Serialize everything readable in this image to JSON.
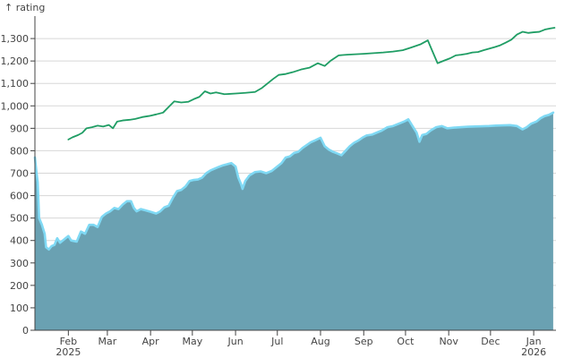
{
  "chart_data": {
    "type": "area",
    "title": "",
    "xlabel": "",
    "ylabel": "↑ rating",
    "grid": true,
    "ylim": [
      0,
      1400
    ],
    "xlim": [
      "2025-01-08",
      "2026-01-17"
    ],
    "y_ticks": [
      0,
      100,
      200,
      300,
      400,
      500,
      600,
      700,
      800,
      900,
      1000,
      1100,
      1200,
      1300
    ],
    "y_tick_labels": [
      "0",
      "100",
      "200",
      "300",
      "400",
      "500",
      "600",
      "700",
      "800",
      "900",
      "1,000",
      "1,100",
      "1,200",
      "1,300"
    ],
    "x_ticks": [
      {
        "date": "2025-02-01",
        "label": "Feb",
        "sublabel": "2025"
      },
      {
        "date": "2025-03-01",
        "label": "Mar",
        "sublabel": ""
      },
      {
        "date": "2025-04-01",
        "label": "Apr",
        "sublabel": ""
      },
      {
        "date": "2025-05-01",
        "label": "May",
        "sublabel": ""
      },
      {
        "date": "2025-06-01",
        "label": "Jun",
        "sublabel": ""
      },
      {
        "date": "2025-07-01",
        "label": "Jul",
        "sublabel": ""
      },
      {
        "date": "2025-08-01",
        "label": "Aug",
        "sublabel": ""
      },
      {
        "date": "2025-09-01",
        "label": "Sep",
        "sublabel": ""
      },
      {
        "date": "2025-10-01",
        "label": "Oct",
        "sublabel": ""
      },
      {
        "date": "2025-11-01",
        "label": "Nov",
        "sublabel": ""
      },
      {
        "date": "2025-12-01",
        "label": "Dec",
        "sublabel": ""
      },
      {
        "date": "2026-01-01",
        "label": "Jan",
        "sublabel": "2026"
      }
    ],
    "series": [
      {
        "kind": "area",
        "fill": "#6aa1b2",
        "stroke": "#7fd9f4",
        "points": [
          [
            "2025-01-08",
            770
          ],
          [
            "2025-01-09",
            710
          ],
          [
            "2025-01-10",
            660
          ],
          [
            "2025-01-11",
            500
          ],
          [
            "2025-01-13",
            470
          ],
          [
            "2025-01-15",
            430
          ],
          [
            "2025-01-16",
            370
          ],
          [
            "2025-01-18",
            360
          ],
          [
            "2025-01-20",
            375
          ],
          [
            "2025-01-22",
            380
          ],
          [
            "2025-01-24",
            410
          ],
          [
            "2025-01-26",
            390
          ],
          [
            "2025-01-28",
            400
          ],
          [
            "2025-02-01",
            420
          ],
          [
            "2025-02-03",
            400
          ],
          [
            "2025-02-07",
            395
          ],
          [
            "2025-02-10",
            440
          ],
          [
            "2025-02-13",
            430
          ],
          [
            "2025-02-16",
            470
          ],
          [
            "2025-02-19",
            470
          ],
          [
            "2025-02-22",
            460
          ],
          [
            "2025-02-25",
            505
          ],
          [
            "2025-02-28",
            520
          ],
          [
            "2025-03-03",
            530
          ],
          [
            "2025-03-06",
            545
          ],
          [
            "2025-03-09",
            540
          ],
          [
            "2025-03-12",
            560
          ],
          [
            "2025-03-15",
            575
          ],
          [
            "2025-03-18",
            575
          ],
          [
            "2025-03-20",
            545
          ],
          [
            "2025-03-22",
            530
          ],
          [
            "2025-03-25",
            540
          ],
          [
            "2025-03-28",
            535
          ],
          [
            "2025-04-01",
            528
          ],
          [
            "2025-04-05",
            520
          ],
          [
            "2025-04-08",
            530
          ],
          [
            "2025-04-11",
            548
          ],
          [
            "2025-04-14",
            555
          ],
          [
            "2025-04-17",
            590
          ],
          [
            "2025-04-20",
            620
          ],
          [
            "2025-04-23",
            625
          ],
          [
            "2025-04-26",
            640
          ],
          [
            "2025-04-29",
            665
          ],
          [
            "2025-05-02",
            670
          ],
          [
            "2025-05-05",
            672
          ],
          [
            "2025-05-08",
            680
          ],
          [
            "2025-05-11",
            700
          ],
          [
            "2025-05-14",
            712
          ],
          [
            "2025-05-17",
            720
          ],
          [
            "2025-05-20",
            728
          ],
          [
            "2025-05-23",
            735
          ],
          [
            "2025-05-26",
            740
          ],
          [
            "2025-05-29",
            745
          ],
          [
            "2025-06-01",
            730
          ],
          [
            "2025-06-03",
            680
          ],
          [
            "2025-06-05",
            650
          ],
          [
            "2025-06-06",
            630
          ],
          [
            "2025-06-08",
            665
          ],
          [
            "2025-06-11",
            690
          ],
          [
            "2025-06-15",
            705
          ],
          [
            "2025-06-19",
            708
          ],
          [
            "2025-06-23",
            700
          ],
          [
            "2025-06-27",
            710
          ],
          [
            "2025-07-01",
            730
          ],
          [
            "2025-07-04",
            745
          ],
          [
            "2025-07-07",
            770
          ],
          [
            "2025-07-10",
            775
          ],
          [
            "2025-07-13",
            790
          ],
          [
            "2025-07-16",
            795
          ],
          [
            "2025-07-19",
            812
          ],
          [
            "2025-07-22",
            825
          ],
          [
            "2025-07-25",
            838
          ],
          [
            "2025-07-28",
            846
          ],
          [
            "2025-08-01",
            858
          ],
          [
            "2025-08-04",
            820
          ],
          [
            "2025-08-07",
            805
          ],
          [
            "2025-08-10",
            795
          ],
          [
            "2025-08-13",
            788
          ],
          [
            "2025-08-16",
            780
          ],
          [
            "2025-08-19",
            800
          ],
          [
            "2025-08-22",
            820
          ],
          [
            "2025-08-25",
            835
          ],
          [
            "2025-08-28",
            845
          ],
          [
            "2025-08-31",
            858
          ],
          [
            "2025-09-03",
            868
          ],
          [
            "2025-09-07",
            872
          ],
          [
            "2025-09-10",
            880
          ],
          [
            "2025-09-14",
            890
          ],
          [
            "2025-09-18",
            905
          ],
          [
            "2025-09-22",
            910
          ],
          [
            "2025-09-26",
            920
          ],
          [
            "2025-09-30",
            930
          ],
          [
            "2025-10-03",
            940
          ],
          [
            "2025-10-06",
            910
          ],
          [
            "2025-10-09",
            880
          ],
          [
            "2025-10-11",
            840
          ],
          [
            "2025-10-13",
            870
          ],
          [
            "2025-10-16",
            875
          ],
          [
            "2025-10-19",
            890
          ],
          [
            "2025-10-23",
            905
          ],
          [
            "2025-10-27",
            910
          ],
          [
            "2025-10-31",
            900
          ],
          [
            "2025-11-05",
            903
          ],
          [
            "2025-11-10",
            905
          ],
          [
            "2025-11-15",
            907
          ],
          [
            "2025-11-20",
            908
          ],
          [
            "2025-11-25",
            909
          ],
          [
            "2025-11-30",
            910
          ],
          [
            "2025-12-05",
            912
          ],
          [
            "2025-12-10",
            913
          ],
          [
            "2025-12-15",
            914
          ],
          [
            "2025-12-20",
            910
          ],
          [
            "2025-12-24",
            895
          ],
          [
            "2025-12-27",
            905
          ],
          [
            "2025-12-30",
            920
          ],
          [
            "2026-01-03",
            930
          ],
          [
            "2026-01-06",
            945
          ],
          [
            "2026-01-09",
            955
          ],
          [
            "2026-01-12",
            960
          ],
          [
            "2026-01-15",
            970
          ]
        ]
      },
      {
        "kind": "line",
        "stroke": "#1f9d64",
        "points": [
          [
            "2025-02-01",
            850
          ],
          [
            "2025-02-04",
            860
          ],
          [
            "2025-02-08",
            870
          ],
          [
            "2025-02-11",
            880
          ],
          [
            "2025-02-14",
            900
          ],
          [
            "2025-02-18",
            905
          ],
          [
            "2025-02-22",
            912
          ],
          [
            "2025-02-26",
            908
          ],
          [
            "2025-03-02",
            915
          ],
          [
            "2025-03-05",
            900
          ],
          [
            "2025-03-08",
            930
          ],
          [
            "2025-03-12",
            935
          ],
          [
            "2025-03-17",
            938
          ],
          [
            "2025-03-21",
            942
          ],
          [
            "2025-03-26",
            950
          ],
          [
            "2025-03-31",
            955
          ],
          [
            "2025-04-05",
            962
          ],
          [
            "2025-04-10",
            970
          ],
          [
            "2025-04-14",
            995
          ],
          [
            "2025-04-18",
            1020
          ],
          [
            "2025-04-23",
            1015
          ],
          [
            "2025-04-28",
            1018
          ],
          [
            "2025-05-02",
            1030
          ],
          [
            "2025-05-06",
            1040
          ],
          [
            "2025-05-10",
            1065
          ],
          [
            "2025-05-14",
            1055
          ],
          [
            "2025-05-18",
            1060
          ],
          [
            "2025-05-24",
            1052
          ],
          [
            "2025-06-01",
            1055
          ],
          [
            "2025-06-08",
            1058
          ],
          [
            "2025-06-15",
            1062
          ],
          [
            "2025-06-20",
            1080
          ],
          [
            "2025-06-24",
            1100
          ],
          [
            "2025-06-28",
            1120
          ],
          [
            "2025-07-02",
            1138
          ],
          [
            "2025-07-07",
            1142
          ],
          [
            "2025-07-12",
            1150
          ],
          [
            "2025-07-18",
            1162
          ],
          [
            "2025-07-24",
            1170
          ],
          [
            "2025-07-30",
            1190
          ],
          [
            "2025-08-04",
            1178
          ],
          [
            "2025-08-08",
            1200
          ],
          [
            "2025-08-14",
            1225
          ],
          [
            "2025-08-20",
            1228
          ],
          [
            "2025-08-26",
            1230
          ],
          [
            "2025-09-01",
            1232
          ],
          [
            "2025-09-08",
            1235
          ],
          [
            "2025-09-15",
            1238
          ],
          [
            "2025-09-22",
            1242
          ],
          [
            "2025-09-29",
            1248
          ],
          [
            "2025-10-05",
            1260
          ],
          [
            "2025-10-12",
            1275
          ],
          [
            "2025-10-17",
            1292
          ],
          [
            "2025-10-20",
            1248
          ],
          [
            "2025-10-24",
            1190
          ],
          [
            "2025-10-28",
            1200
          ],
          [
            "2025-11-02",
            1212
          ],
          [
            "2025-11-06",
            1225
          ],
          [
            "2025-11-10",
            1228
          ],
          [
            "2025-11-14",
            1232
          ],
          [
            "2025-11-18",
            1238
          ],
          [
            "2025-11-22",
            1240
          ],
          [
            "2025-11-26",
            1248
          ],
          [
            "2025-11-30",
            1255
          ],
          [
            "2025-12-04",
            1262
          ],
          [
            "2025-12-08",
            1270
          ],
          [
            "2025-12-12",
            1282
          ],
          [
            "2025-12-16",
            1295
          ],
          [
            "2025-12-20",
            1318
          ],
          [
            "2025-12-24",
            1330
          ],
          [
            "2025-12-28",
            1325
          ],
          [
            "2026-01-01",
            1328
          ],
          [
            "2026-01-05",
            1330
          ],
          [
            "2026-01-09",
            1340
          ],
          [
            "2026-01-13",
            1345
          ],
          [
            "2026-01-16",
            1348
          ]
        ]
      }
    ]
  }
}
